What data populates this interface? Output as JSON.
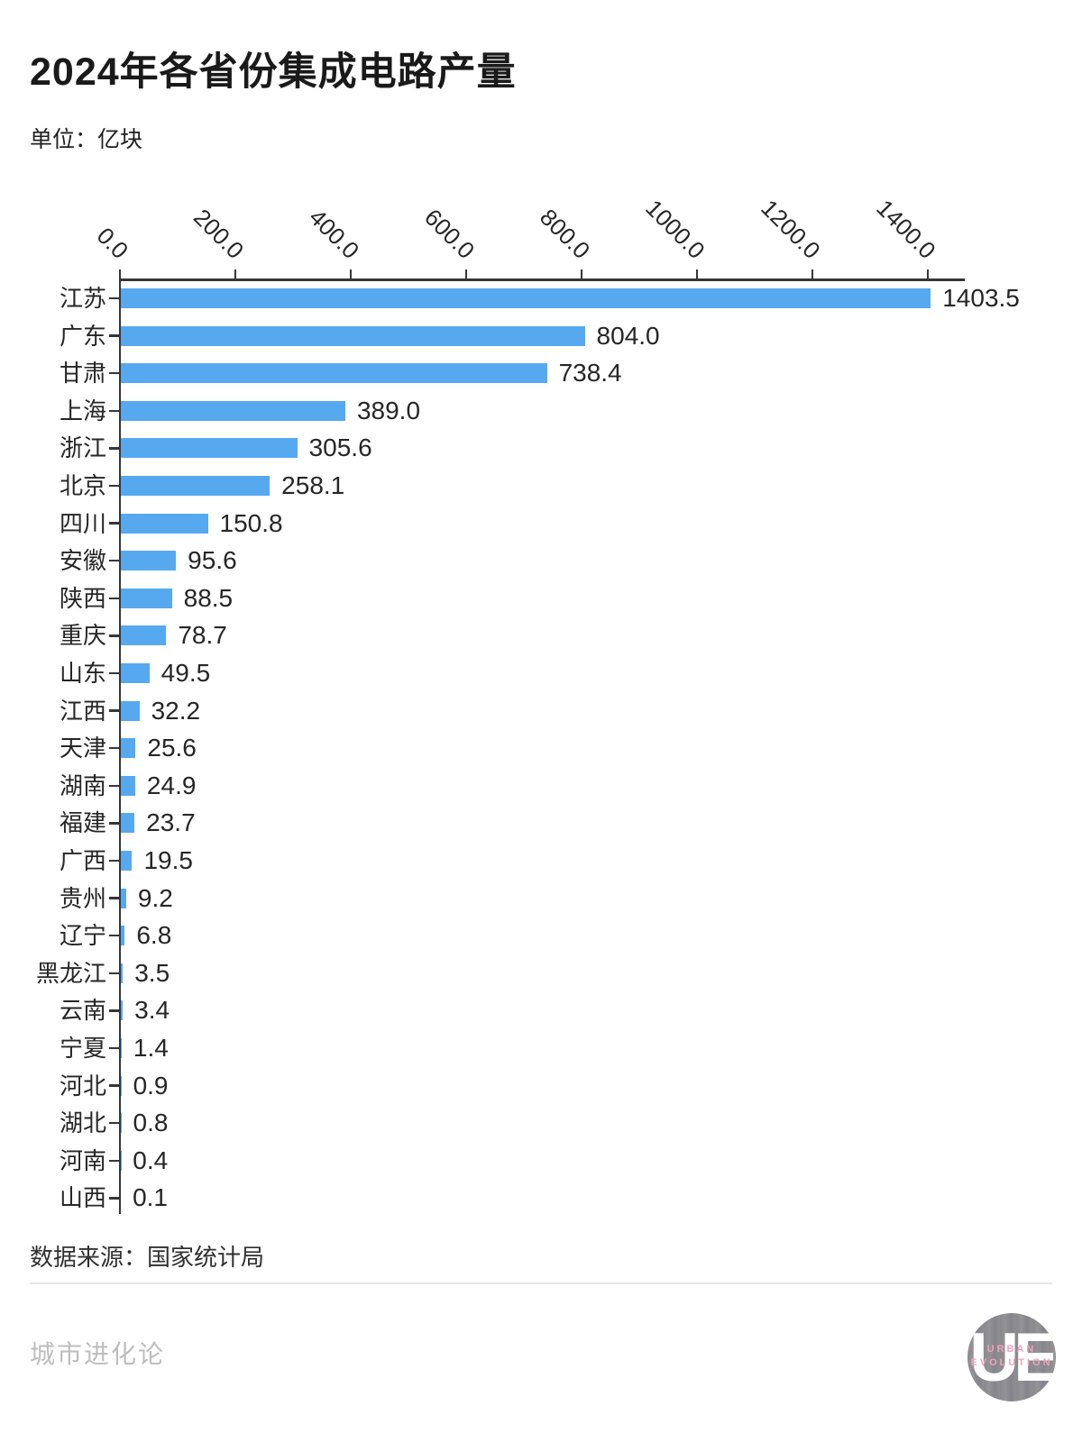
{
  "title": "2024年各省份集成电路产量",
  "unit_label": "单位：亿块",
  "source_label": "数据来源：国家统计局",
  "brand": "城市进化论",
  "logo": {
    "monogram": "UE",
    "caption_line1": "URBAN",
    "caption_line2": "EVOLUTION"
  },
  "colors": {
    "bar": "#56a9ef",
    "axis": "#363636",
    "title_text": "#1a1a1a",
    "label_text": "#262626",
    "muted_text": "#bdbdbd",
    "divider": "#e6e6e6",
    "logo_circle_gray": "#8e8d91",
    "logo_caption_pink": "#f2a3b8",
    "logo_monogram": "#ffffff"
  },
  "chart_data": {
    "type": "bar",
    "orientation": "horizontal",
    "title": "2024年各省份集成电路产量",
    "unit": "亿块",
    "xlabel": "",
    "ylabel": "",
    "grid": false,
    "axis_position": "top",
    "tick_rotation_deg": 45,
    "xlim": [
      0,
      1464
    ],
    "xticks": [
      0,
      200,
      400,
      600,
      800,
      1000,
      1200,
      1400
    ],
    "xtick_labels": [
      "0.0",
      "200.0",
      "400.0",
      "600.0",
      "800.0",
      "1000.0",
      "1200.0",
      "1400.0"
    ],
    "categories": [
      "江苏",
      "广东",
      "甘肃",
      "上海",
      "浙江",
      "北京",
      "四川",
      "安徽",
      "陕西",
      "重庆",
      "山东",
      "江西",
      "天津",
      "湖南",
      "福建",
      "广西",
      "贵州",
      "辽宁",
      "黑龙江",
      "云南",
      "宁夏",
      "河北",
      "湖北",
      "河南",
      "山西"
    ],
    "values": [
      1403.5,
      804.0,
      738.4,
      389.0,
      305.6,
      258.1,
      150.8,
      95.6,
      88.5,
      78.7,
      49.5,
      32.2,
      25.6,
      24.9,
      23.7,
      19.5,
      9.2,
      6.8,
      3.5,
      3.4,
      1.4,
      0.9,
      0.8,
      0.4,
      0.1
    ],
    "value_labels": [
      "1403.5",
      "804.0",
      "738.4",
      "389.0",
      "305.6",
      "258.1",
      "150.8",
      "95.6",
      "88.5",
      "78.7",
      "49.5",
      "32.2",
      "25.6",
      "24.9",
      "23.7",
      "19.5",
      "9.2",
      "6.8",
      "3.5",
      "3.4",
      "1.4",
      "0.9",
      "0.8",
      "0.4",
      "0.1"
    ]
  }
}
